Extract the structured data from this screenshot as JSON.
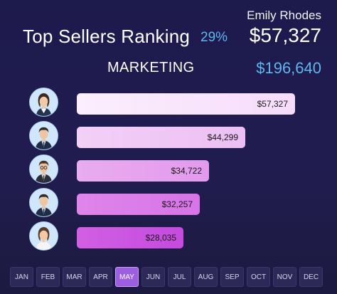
{
  "header": {
    "seller_name": "Emily Rhodes",
    "title": "Top Sellers Ranking",
    "percent": "29%",
    "amount": "$57,327",
    "department": "MARKETING",
    "department_amount": "$196,640"
  },
  "colors": {
    "accent_blue": "#5fb7ef",
    "bar_gradient_start": [
      "#fbeefd",
      "#f3d0f6",
      "#e9acef",
      "#df85ea",
      "#d25fe3"
    ],
    "bar_gradient_end": [
      "#f6dcfb",
      "#ecbff4",
      "#e29aed",
      "#d774e8",
      "#c44bde"
    ],
    "active_month": "#9b5fe0"
  },
  "sellers": [
    {
      "avatar": "female-seller-icon",
      "value": 57327,
      "label": "$57,327"
    },
    {
      "avatar": "male-seller-icon",
      "value": 44299,
      "label": "$44,299"
    },
    {
      "avatar": "male-seller-glasses-icon",
      "value": 34722,
      "label": "$34,722"
    },
    {
      "avatar": "male-seller-icon",
      "value": 32257,
      "label": "$32,257"
    },
    {
      "avatar": "female-seller-icon",
      "value": 28035,
      "label": "$28,035"
    }
  ],
  "months": [
    "JAN",
    "FEB",
    "MAR",
    "APR",
    "MAY",
    "JUN",
    "JUL",
    "AUG",
    "SEP",
    "OCT",
    "NOV",
    "DEC"
  ],
  "selected_month": "MAY"
}
